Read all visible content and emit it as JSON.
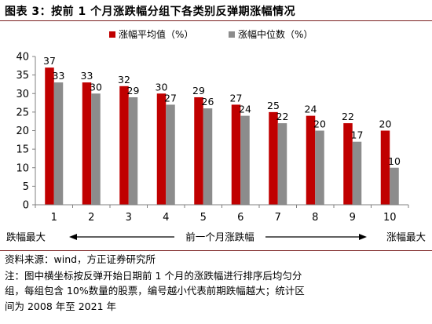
{
  "title": "图表 3：按前 1 个月涨跌幅分组下各类别反弹期涨幅情况",
  "chart_data": {
    "type": "bar",
    "categories": [
      "1",
      "2",
      "3",
      "4",
      "5",
      "6",
      "7",
      "8",
      "9",
      "10"
    ],
    "series": [
      {
        "name": "涨幅平均值（%）",
        "values": [
          37,
          33,
          32,
          30,
          29,
          27,
          25,
          24,
          22,
          20
        ],
        "color": "#c00000"
      },
      {
        "name": "涨幅中位数（%）",
        "values": [
          33,
          30,
          29,
          27,
          26,
          24,
          22,
          20,
          17,
          10
        ],
        "color": "#8c8c8c"
      }
    ],
    "yticks": [
      0,
      5,
      10,
      15,
      20,
      25,
      30,
      35,
      40
    ],
    "ylim": [
      0,
      40
    ],
    "legend_position": "top-center",
    "grid": false,
    "axis_note": {
      "left": "跌幅最大",
      "center": "前一个月涨跌幅",
      "right": "涨幅最大"
    }
  },
  "footer": {
    "source": "资料来源：wind，方正证券研究所",
    "note_lines": [
      "注：图中横坐标按反弹开始日期前 1 个月的涨跌幅进行排序后均匀分",
      "组，每组包含 10%数量的股票，编号越小代表前期跌幅越大；统计区",
      "间为 2008 年至 2021 年"
    ]
  }
}
